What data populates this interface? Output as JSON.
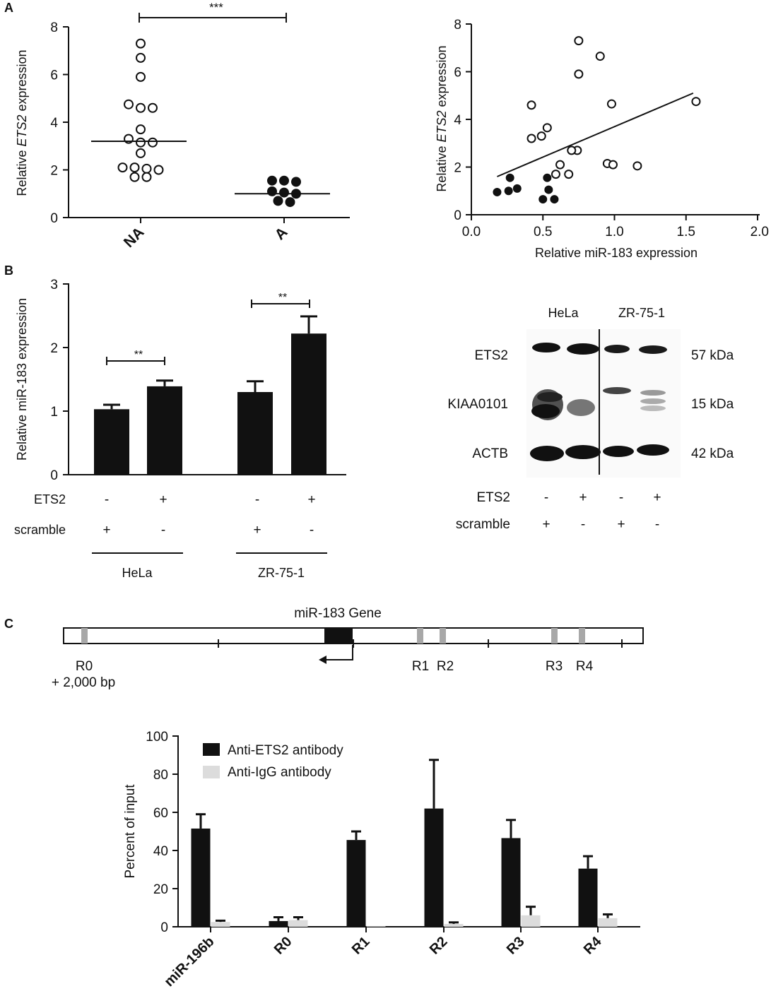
{
  "panel_labels": {
    "a": "A",
    "b": "B",
    "c": "C"
  },
  "colors": {
    "black": "#111111",
    "gray_bar": "#dcdcdc",
    "region_gray": "#a8a8a8"
  },
  "chart_data": [
    {
      "id": "A-left",
      "type": "scatter",
      "ylabel_prefix": "Relative ",
      "ylabel_italic": "ETS2",
      "ylabel_suffix": " expression",
      "categories": [
        "NA",
        "A"
      ],
      "ylim": [
        0,
        8
      ],
      "yticks": [
        "0",
        "2",
        "4",
        "6",
        "8"
      ],
      "significance": "***",
      "series": [
        {
          "name": "NA",
          "marker": "open",
          "median": 3.2,
          "values": [
            7.3,
            6.7,
            5.9,
            4.6,
            4.6,
            4.75,
            3.7,
            3.3,
            3.15,
            3.15,
            2.7,
            2.1,
            2.0,
            2.05,
            2.1,
            1.7,
            1.7
          ]
        },
        {
          "name": "A",
          "marker": "filled",
          "median": 1.0,
          "values": [
            1.55,
            1.5,
            1.55,
            1.05,
            1.0,
            1.1,
            0.7,
            0.65
          ]
        }
      ]
    },
    {
      "id": "A-right",
      "type": "scatter",
      "xlabel": "Relative miR-183 expression",
      "ylabel_prefix": "Relative ",
      "ylabel_italic": "ETS2",
      "ylabel_suffix": " expression",
      "xlim": [
        0,
        2
      ],
      "ylim": [
        0,
        8
      ],
      "xticks": [
        "0.0",
        "0.5",
        "1.0",
        "1.5",
        "2.0"
      ],
      "yticks": [
        "0",
        "2",
        "4",
        "6",
        "8"
      ],
      "regression": {
        "x": [
          0.18,
          1.55
        ],
        "y": [
          1.6,
          5.1
        ]
      },
      "open_points": [
        [
          0.75,
          7.3
        ],
        [
          0.9,
          6.65
        ],
        [
          0.75,
          5.9
        ],
        [
          0.42,
          4.6
        ],
        [
          0.98,
          4.65
        ],
        [
          1.57,
          4.75
        ],
        [
          0.53,
          3.65
        ],
        [
          0.49,
          3.3
        ],
        [
          0.42,
          3.2
        ],
        [
          0.74,
          2.7
        ],
        [
          0.7,
          2.7
        ],
        [
          0.95,
          2.15
        ],
        [
          0.99,
          2.1
        ],
        [
          1.16,
          2.05
        ],
        [
          0.62,
          2.1
        ],
        [
          0.59,
          1.7
        ],
        [
          0.68,
          1.7
        ]
      ],
      "filled_points": [
        [
          0.27,
          1.55
        ],
        [
          0.53,
          1.55
        ],
        [
          0.18,
          0.95
        ],
        [
          0.26,
          1.0
        ],
        [
          0.32,
          1.1
        ],
        [
          0.54,
          1.05
        ],
        [
          0.5,
          0.65
        ],
        [
          0.58,
          0.65
        ]
      ]
    },
    {
      "id": "B-left",
      "type": "bar",
      "ylabel": "Relative miR-183 expression",
      "ylim": [
        0,
        3
      ],
      "yticks": [
        "0",
        "1",
        "2",
        "3"
      ],
      "values": [
        1.03,
        1.39,
        1.3,
        2.22
      ],
      "errors": [
        0.07,
        0.09,
        0.17,
        0.27
      ],
      "significance": [
        "**",
        "**"
      ],
      "row_labels": [
        "ETS2",
        "scramble"
      ],
      "ets2_signs": [
        "-",
        "+",
        "-",
        "+"
      ],
      "scramble_signs": [
        "+",
        "-",
        "+",
        "-"
      ],
      "groups": [
        "HeLa",
        "ZR-75-1"
      ]
    },
    {
      "id": "C-bottom",
      "type": "bar",
      "ylabel": "Percent of input",
      "ylim": [
        0,
        100
      ],
      "yticks": [
        "0",
        "20",
        "40",
        "60",
        "80",
        "100"
      ],
      "categories": [
        "miR-196b",
        "R0",
        "R1",
        "R2",
        "R3",
        "R4"
      ],
      "series": [
        {
          "name": "Anti-ETS2 antibody",
          "color": "#111111",
          "values": [
            51.5,
            3.0,
            45.5,
            62.0,
            46.5,
            30.5
          ],
          "errors": [
            7.5,
            2.0,
            4.5,
            25.5,
            9.5,
            6.5
          ]
        },
        {
          "name": "Anti-IgG antibody",
          "color": "#dcdcdc",
          "values": [
            2.5,
            3.5,
            0.3,
            1.5,
            6.0,
            4.5
          ],
          "errors": [
            0.7,
            1.5,
            0.0,
            0.8,
            4.5,
            2.0
          ]
        }
      ]
    }
  ],
  "blot": {
    "groups": [
      "HeLa",
      "ZR-75-1"
    ],
    "proteins": [
      {
        "name": "ETS2",
        "kda": "57 kDa"
      },
      {
        "name": "KIAA0101",
        "kda": "15 kDa"
      },
      {
        "name": "ACTB",
        "kda": "42 kDa"
      }
    ],
    "row_labels": [
      "ETS2",
      "scramble"
    ],
    "ets2_signs": [
      "-",
      "+",
      "-",
      "+"
    ],
    "scramble_signs": [
      "+",
      "-",
      "+",
      "-"
    ]
  },
  "gene_map": {
    "gene_label": "miR-183 Gene",
    "regions": [
      "R0",
      "R1",
      "R2",
      "R3",
      "R4"
    ],
    "offset_label": "+ 2,000 bp"
  }
}
